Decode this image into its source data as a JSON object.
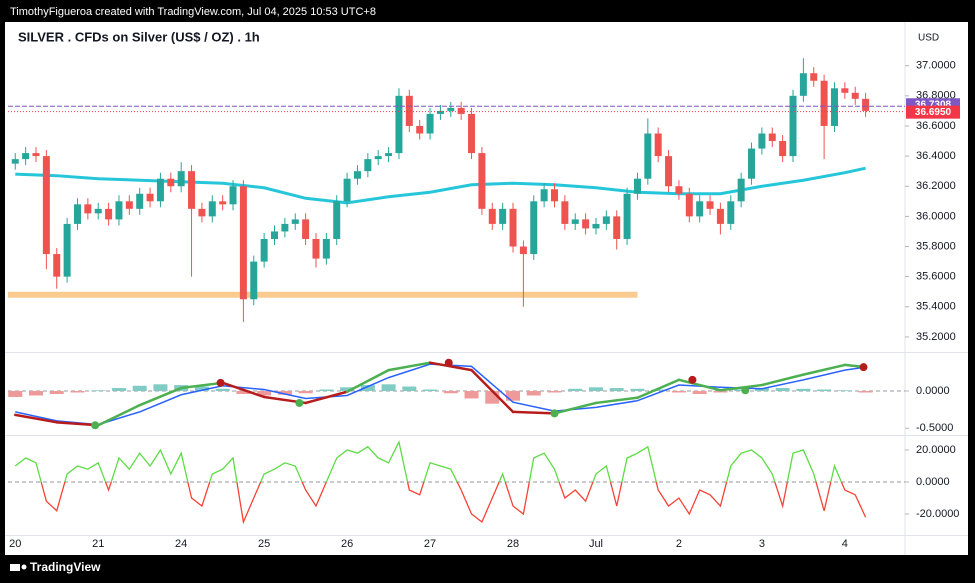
{
  "header": {
    "text": "TimothyFigueroa created with TradingView.com, Jul 04, 2025 10:53 UTC+8"
  },
  "footer": {
    "logo": "TradingView"
  },
  "chart_data": [
    {
      "type": "candlestick",
      "title": "SILVER . CFDs on Silver (US$ / OZ) . 1h",
      "currency": "USD",
      "categories": [
        "20",
        null,
        null,
        null,
        null,
        null,
        null,
        null,
        "21",
        null,
        null,
        null,
        null,
        null,
        null,
        null,
        "24",
        null,
        null,
        null,
        null,
        null,
        null,
        null,
        "25",
        null,
        null,
        null,
        null,
        null,
        null,
        null,
        "26",
        null,
        null,
        null,
        null,
        null,
        null,
        null,
        "27",
        null,
        null,
        null,
        null,
        null,
        null,
        null,
        "28",
        null,
        null,
        null,
        null,
        null,
        null,
        null,
        "Jul",
        null,
        null,
        null,
        null,
        null,
        null,
        null,
        "2",
        null,
        null,
        null,
        null,
        null,
        null,
        null,
        "3",
        null,
        null,
        null,
        null,
        null,
        null,
        null,
        "4",
        null,
        null
      ],
      "open": [
        36.35,
        36.38,
        36.42,
        36.4,
        35.75,
        35.6,
        35.95,
        36.08,
        36.02,
        36.05,
        35.98,
        36.1,
        36.05,
        36.15,
        36.1,
        36.25,
        36.2,
        36.3,
        36.05,
        36.0,
        36.1,
        36.08,
        36.2,
        35.45,
        35.7,
        35.85,
        35.9,
        35.95,
        35.98,
        35.85,
        35.72,
        35.85,
        36.1,
        36.25,
        36.3,
        36.38,
        36.4,
        36.42,
        36.8,
        36.6,
        36.55,
        36.68,
        36.7,
        36.72,
        36.68,
        36.42,
        36.05,
        35.95,
        36.05,
        35.8,
        35.75,
        36.1,
        36.18,
        36.1,
        35.95,
        35.98,
        35.92,
        35.95,
        36.0,
        35.85,
        36.15,
        36.25,
        36.55,
        36.4,
        36.2,
        36.15,
        36.0,
        36.1,
        36.05,
        35.95,
        36.1,
        36.25,
        36.45,
        36.55,
        36.5,
        36.4,
        36.8,
        36.95,
        36.9,
        36.6,
        36.85,
        36.82,
        36.78
      ],
      "high": [
        36.42,
        36.46,
        36.46,
        36.44,
        35.79,
        35.99,
        36.12,
        36.12,
        36.09,
        36.09,
        36.14,
        36.14,
        36.19,
        36.19,
        36.29,
        36.29,
        36.36,
        36.34,
        36.09,
        36.14,
        36.14,
        36.24,
        36.24,
        35.74,
        35.89,
        35.94,
        35.99,
        36.02,
        36.02,
        35.89,
        35.89,
        36.14,
        36.29,
        36.34,
        36.42,
        36.44,
        36.46,
        36.85,
        36.84,
        36.64,
        36.72,
        36.74,
        36.76,
        36.76,
        36.72,
        36.46,
        36.09,
        36.09,
        36.09,
        35.84,
        36.14,
        36.22,
        36.22,
        36.14,
        36.02,
        36.02,
        35.99,
        36.04,
        36.04,
        36.19,
        36.29,
        36.65,
        36.59,
        36.44,
        36.24,
        36.19,
        36.14,
        36.14,
        36.09,
        36.14,
        36.29,
        36.49,
        36.59,
        36.59,
        36.54,
        36.84,
        37.05,
        36.99,
        36.94,
        36.89,
        36.89,
        36.86,
        36.82
      ],
      "low": [
        36.31,
        36.34,
        36.36,
        35.65,
        35.52,
        35.56,
        35.91,
        35.98,
        35.98,
        35.94,
        35.94,
        36.01,
        36.01,
        36.06,
        36.06,
        36.16,
        36.16,
        35.6,
        35.96,
        35.96,
        36.04,
        36.04,
        35.3,
        35.41,
        35.66,
        35.81,
        35.86,
        35.91,
        35.81,
        35.66,
        35.68,
        35.81,
        36.06,
        36.21,
        36.26,
        36.34,
        36.36,
        36.38,
        36.56,
        36.51,
        36.51,
        36.64,
        36.66,
        36.64,
        36.38,
        36.01,
        35.91,
        35.91,
        35.76,
        35.4,
        35.71,
        36.06,
        36.06,
        35.91,
        35.91,
        35.88,
        35.88,
        35.91,
        35.78,
        35.81,
        36.11,
        36.21,
        36.36,
        36.16,
        36.11,
        35.96,
        35.96,
        36.01,
        35.88,
        35.91,
        36.06,
        36.21,
        36.41,
        36.46,
        36.36,
        36.36,
        36.76,
        36.86,
        36.38,
        36.56,
        36.78,
        36.74,
        36.66
      ],
      "close": [
        36.38,
        36.42,
        36.4,
        35.75,
        35.6,
        35.95,
        36.08,
        36.02,
        36.05,
        35.98,
        36.1,
        36.05,
        36.15,
        36.1,
        36.25,
        36.2,
        36.3,
        36.05,
        36.0,
        36.1,
        36.08,
        36.2,
        35.45,
        35.7,
        35.85,
        35.9,
        35.95,
        35.98,
        35.85,
        35.72,
        35.85,
        36.1,
        36.25,
        36.3,
        36.38,
        36.4,
        36.42,
        36.8,
        36.6,
        36.55,
        36.68,
        36.7,
        36.72,
        36.68,
        36.42,
        36.05,
        35.95,
        36.05,
        35.8,
        35.75,
        36.1,
        36.18,
        36.1,
        35.95,
        35.98,
        35.92,
        35.95,
        36.0,
        35.85,
        36.15,
        36.25,
        36.55,
        36.4,
        36.2,
        36.15,
        36.0,
        36.1,
        36.05,
        35.95,
        36.1,
        36.25,
        36.45,
        36.55,
        36.5,
        36.4,
        36.8,
        36.95,
        36.9,
        36.6,
        36.85,
        36.82,
        36.78,
        36.7
      ],
      "up_color": "#26a69a",
      "down_color": "#ef5350",
      "series": [
        {
          "color": "#26c6da",
          "x": [
            0,
            4,
            8,
            12,
            16,
            20,
            24,
            28,
            32,
            36,
            40,
            44,
            48,
            52,
            56,
            60,
            64,
            68,
            72,
            76,
            80,
            82
          ],
          "values": [
            36.28,
            36.27,
            36.25,
            36.24,
            36.23,
            36.22,
            36.19,
            36.12,
            36.09,
            36.13,
            36.16,
            36.21,
            36.22,
            36.21,
            36.19,
            36.16,
            36.15,
            36.15,
            36.2,
            36.24,
            36.29,
            36.32
          ]
        }
      ],
      "zone": {
        "value": 35.48,
        "x": [
          -0.7,
          60
        ],
        "color": "#f9cb8f"
      },
      "price_lines": [
        {
          "value": 36.7308,
          "label": "36.7308",
          "color": "#7e57c2",
          "style": "dashed"
        },
        {
          "value": 36.695,
          "label": "36.6950",
          "color": "#f23645",
          "style": "dotted"
        }
      ],
      "xlim": [
        -0.7,
        85.8
      ],
      "ylim": [
        35.1,
        37.27
      ],
      "yticks": [
        {
          "value": 35.2,
          "label": "35.2000"
        },
        {
          "value": 35.4,
          "label": "35.4000"
        },
        {
          "value": 35.6,
          "label": "35.6000"
        },
        {
          "value": 35.8,
          "label": "35.8000"
        },
        {
          "value": 36.0,
          "label": "36.0000"
        },
        {
          "value": 36.2,
          "label": "36.2000"
        },
        {
          "value": 36.4,
          "label": "36.4000"
        },
        {
          "value": 36.6,
          "label": "36.6000"
        },
        {
          "value": 36.8,
          "label": "36.8000"
        },
        {
          "value": 37.0,
          "label": "37.0000"
        }
      ]
    },
    {
      "type": "macd",
      "x": [
        0,
        4,
        8,
        12,
        16,
        20,
        24,
        28,
        32,
        36,
        40,
        44,
        48,
        52,
        56,
        60,
        64,
        68,
        72,
        76,
        80,
        82
      ],
      "series": [
        {
          "color": "#4caf50",
          "down_color": "#b71c1c",
          "values": [
            -0.32,
            -0.42,
            -0.46,
            -0.19,
            0.04,
            0.11,
            -0.08,
            -0.16,
            -0.01,
            0.28,
            0.38,
            0.28,
            -0.28,
            -0.3,
            -0.16,
            -0.09,
            0.15,
            0.01,
            0.08,
            0.22,
            0.35,
            0.32
          ]
        },
        {
          "color": "#2962ff",
          "values": [
            -0.28,
            -0.4,
            -0.45,
            -0.28,
            -0.05,
            0.07,
            0.02,
            -0.1,
            -0.06,
            0.18,
            0.36,
            0.33,
            -0.15,
            -0.27,
            -0.22,
            -0.13,
            0.08,
            0.05,
            0.03,
            0.15,
            0.28,
            0.32
          ]
        }
      ],
      "histogram": {
        "x": [
          0,
          2,
          4,
          6,
          8,
          10,
          12,
          14,
          16,
          18,
          20,
          22,
          24,
          26,
          28,
          30,
          32,
          34,
          36,
          38,
          40,
          42,
          44,
          46,
          48,
          50,
          52,
          54,
          56,
          58,
          60,
          62,
          64,
          66,
          68,
          70,
          72,
          74,
          76,
          78,
          80,
          82
        ],
        "values": [
          -0.08,
          -0.06,
          -0.04,
          -0.02,
          0.01,
          0.04,
          0.07,
          0.09,
          0.08,
          0.06,
          0.03,
          -0.04,
          -0.06,
          -0.05,
          -0.03,
          0.02,
          0.05,
          0.08,
          0.09,
          0.06,
          0.02,
          -0.03,
          -0.1,
          -0.17,
          -0.13,
          -0.06,
          -0.02,
          0.03,
          0.05,
          0.04,
          0.03,
          0.02,
          -0.02,
          -0.04,
          -0.02,
          0.02,
          0.04,
          0.04,
          0.03,
          0.02,
          0.01,
          -0.02
        ],
        "up_color": "#80cbc4",
        "down_color": "#ef9a9a"
      },
      "markers": {
        "x": [
          7.7,
          19.8,
          27.4,
          41.8,
          52,
          65.3,
          70.4,
          81.8
        ],
        "values": [
          -0.46,
          0.11,
          -0.16,
          0.38,
          -0.3,
          0.15,
          0.01,
          0.32
        ],
        "colors": [
          "#4caf50",
          "#b71c1c",
          "#4caf50",
          "#b71c1c",
          "#4caf50",
          "#b71c1c",
          "#4caf50",
          "#b71c1c"
        ]
      },
      "zero_line": true,
      "ylim": [
        -0.59,
        0.51
      ],
      "yticks": [
        {
          "value": 0,
          "label": "0.0000"
        },
        {
          "value": -0.5,
          "label": "-0.5000"
        }
      ]
    },
    {
      "type": "oscillator",
      "values": [
        10,
        15,
        12,
        -12,
        -18,
        5,
        10,
        8,
        12,
        -5,
        15,
        8,
        18,
        10,
        20,
        5,
        18,
        -10,
        -15,
        5,
        8,
        15,
        -25,
        -10,
        5,
        8,
        12,
        10,
        -5,
        -15,
        0,
        15,
        20,
        18,
        22,
        15,
        12,
        25,
        -5,
        -8,
        12,
        10,
        8,
        -5,
        -20,
        -25,
        -10,
        5,
        -15,
        -20,
        15,
        18,
        8,
        -10,
        -5,
        -12,
        5,
        10,
        -15,
        15,
        18,
        22,
        -5,
        -15,
        -10,
        -20,
        -5,
        -8,
        -15,
        10,
        18,
        20,
        15,
        5,
        -15,
        18,
        20,
        5,
        -18,
        10,
        -5,
        -8,
        -22
      ],
      "up_color": "#5ddc45",
      "down_color": "#f44336",
      "zero_line": true,
      "ylim": [
        -33.1,
        28.1
      ],
      "yticks": [
        {
          "value": 20,
          "label": "20.0000"
        },
        {
          "value": 0,
          "label": "0.0000"
        },
        {
          "value": -20,
          "label": "-20.0000"
        }
      ]
    }
  ]
}
